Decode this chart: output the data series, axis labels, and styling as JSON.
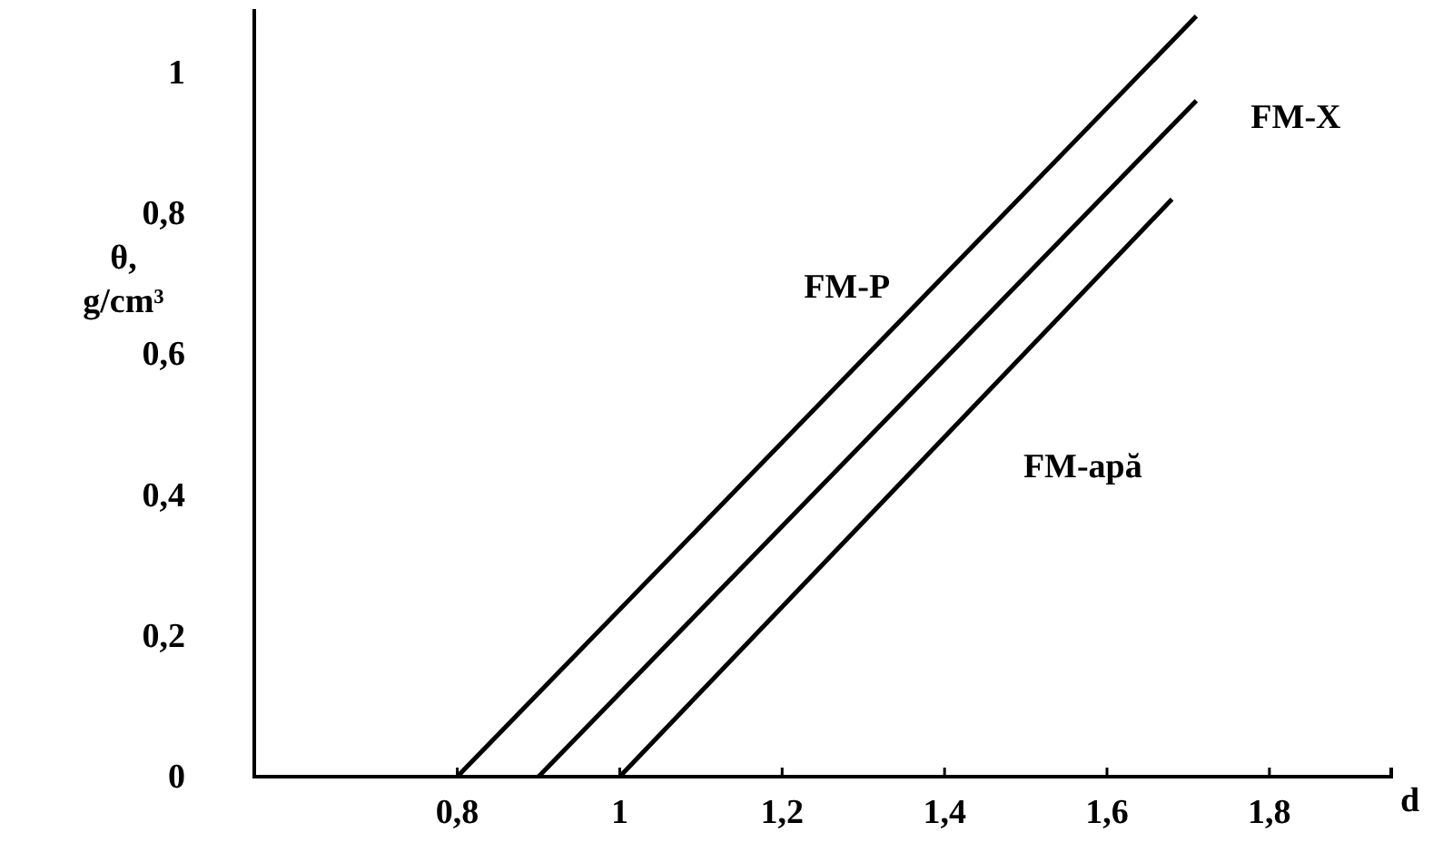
{
  "chart_data": {
    "type": "line",
    "xlabel": "d",
    "ylabel": "θ, g/cm³",
    "xlim": [
      0.55,
      1.95
    ],
    "ylim": [
      0,
      1.09
    ],
    "xticks": [
      {
        "value": 0.8,
        "label": "0,8"
      },
      1,
      {
        "value": 1.2,
        "label": "1,2"
      },
      {
        "value": 1.4,
        "label": "1,4"
      },
      {
        "value": 1.6,
        "label": "1,6"
      },
      {
        "value": 1.8,
        "label": "1,8"
      }
    ],
    "yticks": [
      0,
      {
        "value": 0.2,
        "label": "0,2"
      },
      {
        "value": 0.4,
        "label": "0,4"
      },
      {
        "value": 0.6,
        "label": "0,6"
      },
      {
        "value": 0.8,
        "label": "0,8"
      },
      1
    ],
    "grid": false,
    "marker": "none",
    "line_style": "solid",
    "series": [
      {
        "name": "FM-P",
        "color": "#000000",
        "x": [
          0.8,
          1.71
        ],
        "values": [
          0,
          1.08
        ]
      },
      {
        "name": "FM-X",
        "color": "#000000",
        "x": [
          0.9,
          1.71
        ],
        "values": [
          0,
          0.96
        ]
      },
      {
        "name": "FM-apă",
        "color": "#000000",
        "x": [
          1.0,
          1.68
        ],
        "values": [
          0,
          0.82
        ]
      }
    ]
  }
}
